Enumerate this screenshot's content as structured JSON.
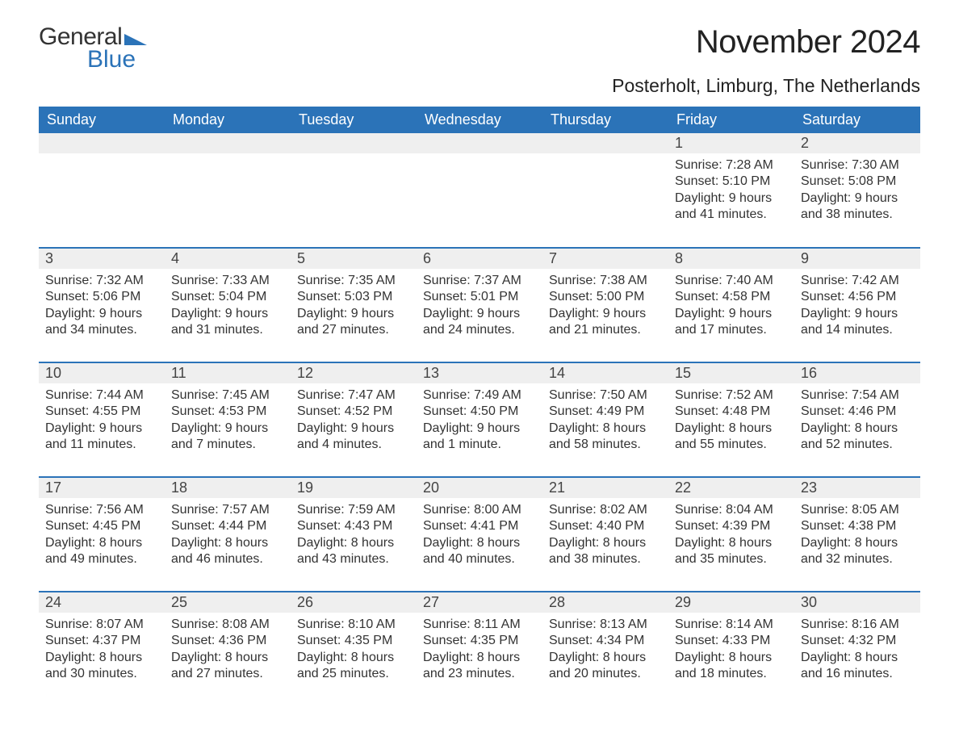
{
  "brand": {
    "word1": "General",
    "word2": "Blue"
  },
  "colors": {
    "accent": "#2b73b8",
    "header_bg": "#2b73b8",
    "header_text": "#ffffff",
    "daynum_bg": "#efefef",
    "text": "#333333",
    "bg": "#ffffff"
  },
  "typography": {
    "title_fontsize": 40,
    "location_fontsize": 23,
    "dayheader_fontsize": 18,
    "body_fontsize": 16
  },
  "title": "November 2024",
  "location": "Posterholt, Limburg, The Netherlands",
  "calendar": {
    "columns": [
      "Sunday",
      "Monday",
      "Tuesday",
      "Wednesday",
      "Thursday",
      "Friday",
      "Saturday"
    ],
    "leading_blanks": 5,
    "days": [
      {
        "n": 1,
        "sunrise": "7:28 AM",
        "sunset": "5:10 PM",
        "dl1": "Daylight: 9 hours",
        "dl2": "and 41 minutes."
      },
      {
        "n": 2,
        "sunrise": "7:30 AM",
        "sunset": "5:08 PM",
        "dl1": "Daylight: 9 hours",
        "dl2": "and 38 minutes."
      },
      {
        "n": 3,
        "sunrise": "7:32 AM",
        "sunset": "5:06 PM",
        "dl1": "Daylight: 9 hours",
        "dl2": "and 34 minutes."
      },
      {
        "n": 4,
        "sunrise": "7:33 AM",
        "sunset": "5:04 PM",
        "dl1": "Daylight: 9 hours",
        "dl2": "and 31 minutes."
      },
      {
        "n": 5,
        "sunrise": "7:35 AM",
        "sunset": "5:03 PM",
        "dl1": "Daylight: 9 hours",
        "dl2": "and 27 minutes."
      },
      {
        "n": 6,
        "sunrise": "7:37 AM",
        "sunset": "5:01 PM",
        "dl1": "Daylight: 9 hours",
        "dl2": "and 24 minutes."
      },
      {
        "n": 7,
        "sunrise": "7:38 AM",
        "sunset": "5:00 PM",
        "dl1": "Daylight: 9 hours",
        "dl2": "and 21 minutes."
      },
      {
        "n": 8,
        "sunrise": "7:40 AM",
        "sunset": "4:58 PM",
        "dl1": "Daylight: 9 hours",
        "dl2": "and 17 minutes."
      },
      {
        "n": 9,
        "sunrise": "7:42 AM",
        "sunset": "4:56 PM",
        "dl1": "Daylight: 9 hours",
        "dl2": "and 14 minutes."
      },
      {
        "n": 10,
        "sunrise": "7:44 AM",
        "sunset": "4:55 PM",
        "dl1": "Daylight: 9 hours",
        "dl2": "and 11 minutes."
      },
      {
        "n": 11,
        "sunrise": "7:45 AM",
        "sunset": "4:53 PM",
        "dl1": "Daylight: 9 hours",
        "dl2": "and 7 minutes."
      },
      {
        "n": 12,
        "sunrise": "7:47 AM",
        "sunset": "4:52 PM",
        "dl1": "Daylight: 9 hours",
        "dl2": "and 4 minutes."
      },
      {
        "n": 13,
        "sunrise": "7:49 AM",
        "sunset": "4:50 PM",
        "dl1": "Daylight: 9 hours",
        "dl2": "and 1 minute."
      },
      {
        "n": 14,
        "sunrise": "7:50 AM",
        "sunset": "4:49 PM",
        "dl1": "Daylight: 8 hours",
        "dl2": "and 58 minutes."
      },
      {
        "n": 15,
        "sunrise": "7:52 AM",
        "sunset": "4:48 PM",
        "dl1": "Daylight: 8 hours",
        "dl2": "and 55 minutes."
      },
      {
        "n": 16,
        "sunrise": "7:54 AM",
        "sunset": "4:46 PM",
        "dl1": "Daylight: 8 hours",
        "dl2": "and 52 minutes."
      },
      {
        "n": 17,
        "sunrise": "7:56 AM",
        "sunset": "4:45 PM",
        "dl1": "Daylight: 8 hours",
        "dl2": "and 49 minutes."
      },
      {
        "n": 18,
        "sunrise": "7:57 AM",
        "sunset": "4:44 PM",
        "dl1": "Daylight: 8 hours",
        "dl2": "and 46 minutes."
      },
      {
        "n": 19,
        "sunrise": "7:59 AM",
        "sunset": "4:43 PM",
        "dl1": "Daylight: 8 hours",
        "dl2": "and 43 minutes."
      },
      {
        "n": 20,
        "sunrise": "8:00 AM",
        "sunset": "4:41 PM",
        "dl1": "Daylight: 8 hours",
        "dl2": "and 40 minutes."
      },
      {
        "n": 21,
        "sunrise": "8:02 AM",
        "sunset": "4:40 PM",
        "dl1": "Daylight: 8 hours",
        "dl2": "and 38 minutes."
      },
      {
        "n": 22,
        "sunrise": "8:04 AM",
        "sunset": "4:39 PM",
        "dl1": "Daylight: 8 hours",
        "dl2": "and 35 minutes."
      },
      {
        "n": 23,
        "sunrise": "8:05 AM",
        "sunset": "4:38 PM",
        "dl1": "Daylight: 8 hours",
        "dl2": "and 32 minutes."
      },
      {
        "n": 24,
        "sunrise": "8:07 AM",
        "sunset": "4:37 PM",
        "dl1": "Daylight: 8 hours",
        "dl2": "and 30 minutes."
      },
      {
        "n": 25,
        "sunrise": "8:08 AM",
        "sunset": "4:36 PM",
        "dl1": "Daylight: 8 hours",
        "dl2": "and 27 minutes."
      },
      {
        "n": 26,
        "sunrise": "8:10 AM",
        "sunset": "4:35 PM",
        "dl1": "Daylight: 8 hours",
        "dl2": "and 25 minutes."
      },
      {
        "n": 27,
        "sunrise": "8:11 AM",
        "sunset": "4:35 PM",
        "dl1": "Daylight: 8 hours",
        "dl2": "and 23 minutes."
      },
      {
        "n": 28,
        "sunrise": "8:13 AM",
        "sunset": "4:34 PM",
        "dl1": "Daylight: 8 hours",
        "dl2": "and 20 minutes."
      },
      {
        "n": 29,
        "sunrise": "8:14 AM",
        "sunset": "4:33 PM",
        "dl1": "Daylight: 8 hours",
        "dl2": "and 18 minutes."
      },
      {
        "n": 30,
        "sunrise": "8:16 AM",
        "sunset": "4:32 PM",
        "dl1": "Daylight: 8 hours",
        "dl2": "and 16 minutes."
      }
    ],
    "labels": {
      "sunrise": "Sunrise: ",
      "sunset": "Sunset: "
    }
  }
}
